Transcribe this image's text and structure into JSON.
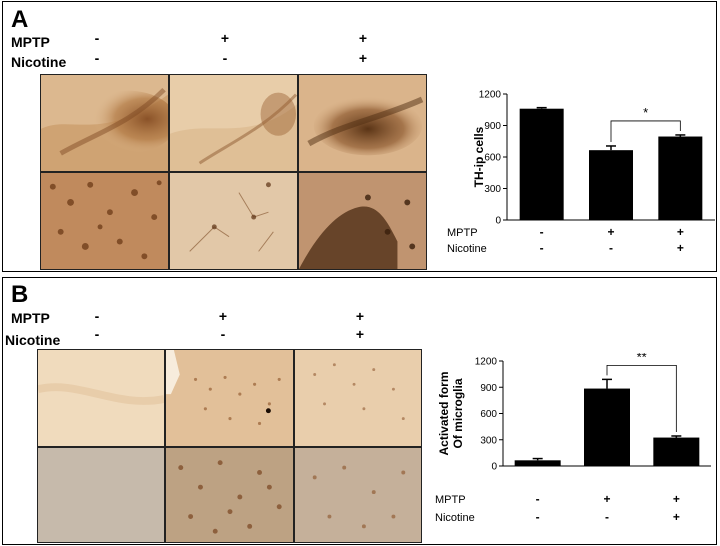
{
  "panel_a": {
    "letter": "A",
    "row_labels": {
      "mptp": "MPTP",
      "nicotine": "Nicotine"
    },
    "mptp_signs": [
      "-",
      "+",
      "+"
    ],
    "nicotine_signs": [
      "-",
      "-",
      "+"
    ]
  },
  "panel_b": {
    "letter": "B",
    "row_labels": {
      "mptp": "MPTP",
      "nicotine": "Nicotine"
    },
    "mptp_signs": [
      "-",
      "+",
      "+"
    ],
    "nicotine_signs": [
      "-",
      "-",
      "+"
    ]
  },
  "chart_data": [
    {
      "type": "bar",
      "categories": [
        "",
        "",
        ""
      ],
      "values": [
        1060,
        665,
        795
      ],
      "errors": [
        10,
        40,
        15
      ],
      "ylabel": "TH-ip cells",
      "ylim": [
        0,
        1200
      ],
      "yticks": [
        "0",
        "300",
        "600",
        "900",
        "1200"
      ],
      "significance": {
        "from": 1,
        "to": 2,
        "label": "*"
      },
      "conditions": {
        "mptp": {
          "label": "MPTP",
          "signs": [
            "-",
            "+",
            "+"
          ]
        },
        "nicotine": {
          "label": "Nicotine",
          "signs": [
            "-",
            "-",
            "+"
          ]
        }
      },
      "bar_color": "#000000"
    },
    {
      "type": "bar",
      "categories": [
        "",
        "",
        ""
      ],
      "values": [
        65,
        885,
        325
      ],
      "errors": [
        20,
        105,
        18
      ],
      "ylabel": "Activated form Of microglia",
      "ylabel_lines": [
        "Activated form",
        "Of microglia"
      ],
      "ylim": [
        0,
        1200
      ],
      "yticks": [
        "0",
        "300",
        "600",
        "900",
        "1200"
      ],
      "significance": {
        "from": 1,
        "to": 2,
        "label": "**"
      },
      "conditions": {
        "mptp": {
          "label": "MPTP",
          "signs": [
            "-",
            "+",
            "+"
          ]
        },
        "nicotine": {
          "label": "Nicotine",
          "signs": [
            "-",
            "-",
            "+"
          ]
        }
      },
      "bar_color": "#000000"
    }
  ]
}
